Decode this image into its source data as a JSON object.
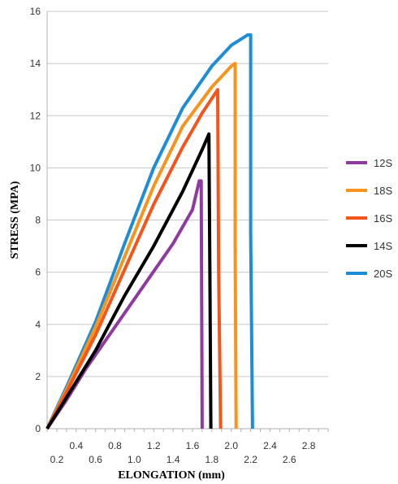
{
  "chart_data": {
    "type": "line",
    "title": "",
    "xlabel": "ELONGATION (mm)",
    "ylabel": "STRESS (MPA)",
    "xlim": [
      0.1,
      3.0
    ],
    "ylim": [
      0,
      16
    ],
    "grid": "horizontal",
    "legend_position": "right",
    "x_ticks_upper": [
      "0.4",
      "0.8",
      "1.2",
      "1.6",
      "2.0",
      "2.4",
      "2.8"
    ],
    "x_ticks_lower": [
      "0.2",
      "0.6",
      "1.0",
      "1.4",
      "1.8",
      "2.2",
      "2.6"
    ],
    "y_ticks": [
      "0",
      "2",
      "4",
      "6",
      "8",
      "10",
      "12",
      "14",
      "16"
    ],
    "series": [
      {
        "name": "12S",
        "color": "#8e3a9e",
        "points": [
          [
            0.1,
            0
          ],
          [
            0.3,
            1.1
          ],
          [
            0.5,
            2.3
          ],
          [
            0.8,
            3.9
          ],
          [
            1.1,
            5.5
          ],
          [
            1.4,
            7.1
          ],
          [
            1.6,
            8.4
          ],
          [
            1.67,
            9.5
          ],
          [
            1.69,
            9.5
          ],
          [
            1.7,
            0
          ]
        ]
      },
      {
        "name": "18S",
        "color": "#f7941d",
        "points": [
          [
            0.1,
            0
          ],
          [
            0.3,
            1.5
          ],
          [
            0.6,
            3.9
          ],
          [
            0.9,
            6.6
          ],
          [
            1.2,
            9.3
          ],
          [
            1.5,
            11.6
          ],
          [
            1.8,
            13.1
          ],
          [
            2.0,
            13.9
          ],
          [
            2.04,
            14.0
          ],
          [
            2.04,
            7.0
          ],
          [
            2.05,
            0
          ]
        ]
      },
      {
        "name": "16S",
        "color": "#f2561d",
        "points": [
          [
            0.1,
            0
          ],
          [
            0.3,
            1.4
          ],
          [
            0.6,
            3.6
          ],
          [
            0.9,
            6.1
          ],
          [
            1.2,
            8.6
          ],
          [
            1.5,
            10.8
          ],
          [
            1.7,
            12.1
          ],
          [
            1.86,
            13.0
          ],
          [
            1.87,
            6.0
          ],
          [
            1.89,
            0
          ]
        ]
      },
      {
        "name": "14S",
        "color": "#000000",
        "points": [
          [
            0.1,
            0
          ],
          [
            0.3,
            1.2
          ],
          [
            0.6,
            3.0
          ],
          [
            0.9,
            5.1
          ],
          [
            1.2,
            7.0
          ],
          [
            1.5,
            9.1
          ],
          [
            1.7,
            10.7
          ],
          [
            1.77,
            11.3
          ],
          [
            1.78,
            6.0
          ],
          [
            1.79,
            0
          ]
        ]
      },
      {
        "name": "20S",
        "color": "#1f8dd6",
        "points": [
          [
            0.1,
            0
          ],
          [
            0.3,
            1.6
          ],
          [
            0.6,
            4.1
          ],
          [
            0.9,
            7.1
          ],
          [
            1.2,
            10.0
          ],
          [
            1.5,
            12.3
          ],
          [
            1.8,
            13.9
          ],
          [
            2.0,
            14.7
          ],
          [
            2.17,
            15.1
          ],
          [
            2.2,
            15.1
          ],
          [
            2.2,
            7.5
          ],
          [
            2.22,
            0
          ]
        ]
      }
    ],
    "legend_order": [
      "12S",
      "18S",
      "16S",
      "14S",
      "20S"
    ]
  }
}
